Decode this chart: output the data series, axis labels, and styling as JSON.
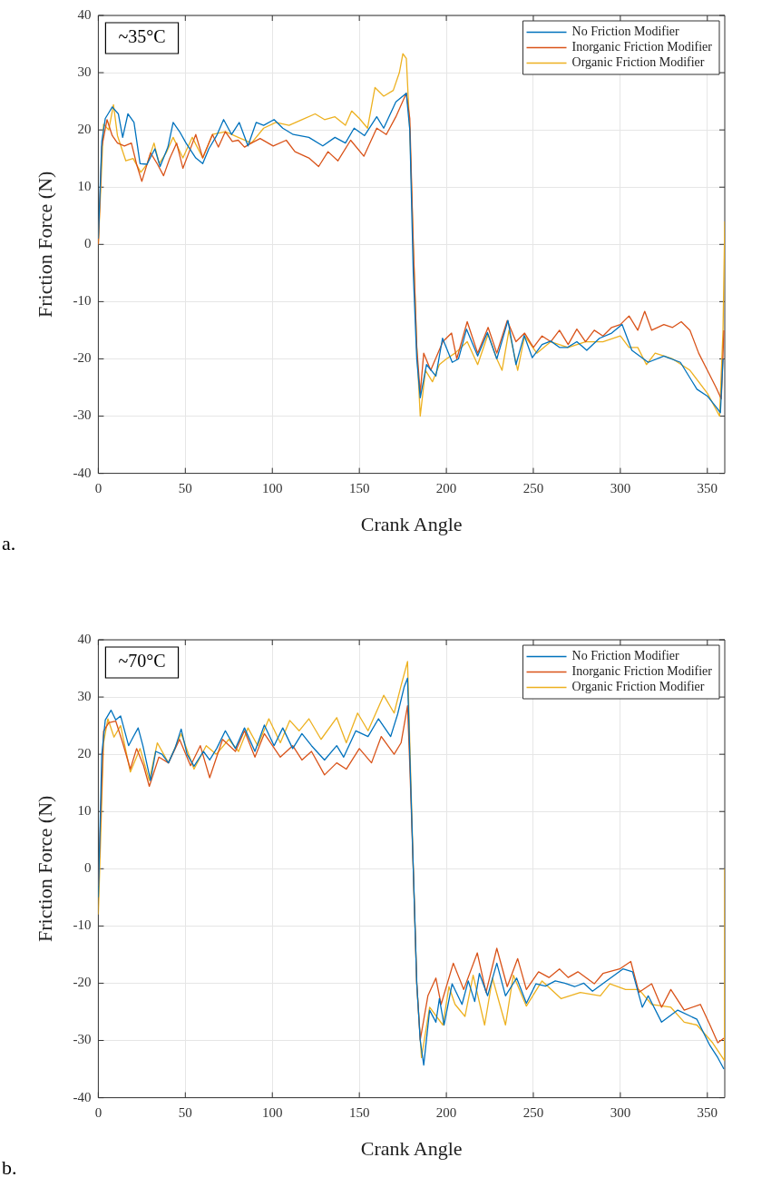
{
  "chart_data": [
    {
      "type": "line",
      "xlabel": "Crank Angle",
      "ylabel": "Friction Force (N)",
      "annotations": [
        "~35°C",
        "a."
      ],
      "xlim": [
        0,
        360
      ],
      "ylim": [
        -40,
        40
      ],
      "xticks": [
        0,
        50,
        100,
        150,
        200,
        250,
        300,
        350
      ],
      "yticks": [
        -40,
        -30,
        -20,
        -10,
        0,
        10,
        20,
        30,
        40
      ],
      "grid": true,
      "legend": "top right",
      "series": [
        {
          "name": "No Friction Modifier",
          "color": "#0072bd",
          "x": [
            0,
            2,
            4,
            6,
            8,
            11.5,
            14,
            17,
            20.5,
            24,
            28,
            32.5,
            35.5,
            40,
            43,
            46.7,
            50.4,
            56,
            60,
            63.5,
            68,
            72,
            76.6,
            81,
            86,
            90.7,
            95,
            101,
            106,
            112,
            121,
            129,
            136,
            142,
            147,
            153,
            160,
            164,
            171,
            177,
            179,
            181,
            183,
            185,
            188.6,
            194,
            197.8,
            203.4,
            207,
            211.6,
            218,
            223.6,
            229,
            235.4,
            240,
            244.7,
            249.4,
            255,
            260,
            265,
            269.6,
            275,
            280.7,
            288,
            295,
            301,
            306.6,
            316,
            325,
            334.5,
            344,
            350,
            355,
            357.5,
            359
          ],
          "values": [
            1,
            18,
            22,
            23,
            24,
            22.8,
            18.7,
            22.8,
            21.3,
            14.1,
            14,
            16.7,
            13.6,
            17,
            21.3,
            19.7,
            17.7,
            15.1,
            14.1,
            16.7,
            19,
            21.8,
            19.2,
            21.3,
            17.2,
            21.3,
            20.8,
            21.8,
            20.3,
            19.2,
            18.7,
            17.2,
            18.7,
            17.7,
            20.3,
            19,
            22.3,
            20.3,
            24.9,
            26.4,
            20,
            -5,
            -20,
            -26.8,
            -21,
            -23,
            -16.4,
            -20.6,
            -20,
            -14.8,
            -19.5,
            -15.4,
            -20,
            -13.3,
            -21,
            -15.9,
            -19.8,
            -17.5,
            -16.9,
            -18,
            -18,
            -17,
            -18.5,
            -16.4,
            -15.5,
            -14,
            -18.5,
            -20.6,
            -19.5,
            -20.6,
            -25.3,
            -26.5,
            -28.4,
            -29.4,
            -20
          ]
        },
        {
          "name": "Inorganic Friction Modifier",
          "color": "#d95319",
          "x": [
            0,
            2,
            5,
            8,
            11,
            15,
            19,
            22,
            25,
            30,
            34,
            37.5,
            41,
            45,
            48.6,
            52,
            56,
            60,
            65.6,
            69,
            73,
            77,
            80.4,
            84,
            88,
            93,
            100.5,
            108,
            113,
            121,
            126.6,
            132,
            137.7,
            145,
            152.6,
            160,
            165.5,
            171,
            177,
            179,
            181,
            183,
            185,
            187,
            191,
            198,
            203,
            206,
            212,
            218,
            224,
            229,
            235,
            240,
            245,
            250,
            255,
            260,
            265,
            270,
            275,
            280,
            285,
            290,
            295,
            300,
            305,
            310,
            314,
            318,
            325,
            330,
            335,
            340,
            345,
            350,
            355,
            358,
            359.5
          ],
          "values": [
            0,
            17,
            21.8,
            19,
            17.7,
            17.2,
            17.7,
            14,
            11,
            16,
            14,
            12,
            15,
            17.7,
            13.3,
            16,
            19.2,
            15.1,
            19.2,
            17,
            19.7,
            18,
            18.2,
            17,
            17.7,
            18.5,
            17.2,
            18.2,
            16.2,
            15.1,
            13.6,
            16.2,
            14.6,
            18.2,
            15.4,
            20.3,
            19.2,
            22.3,
            26.4,
            22,
            0,
            -18,
            -26,
            -19,
            -22,
            -17,
            -15.5,
            -20,
            -13.5,
            -19,
            -14.5,
            -19,
            -13.3,
            -17,
            -15.5,
            -18,
            -16,
            -17,
            -15,
            -17.5,
            -14.8,
            -17,
            -15,
            -16,
            -14.5,
            -14,
            -12.5,
            -15,
            -11.7,
            -15,
            -14,
            -14.5,
            -13.5,
            -15,
            -19,
            -22,
            -25,
            -27,
            -15
          ]
        },
        {
          "name": "Organic Friction Modifier",
          "color": "#edb120",
          "x": [
            0,
            3,
            6,
            8.7,
            11,
            15.8,
            20,
            24.4,
            28,
            32,
            35,
            39,
            43,
            48.6,
            54,
            60,
            65.6,
            73,
            80.4,
            88,
            95,
            102,
            109.6,
            117,
            124.6,
            130,
            136,
            142,
            145.6,
            150,
            154.7,
            159,
            164,
            169.5,
            173,
            175,
            177,
            179,
            181,
            183,
            185,
            188,
            192,
            196,
            200,
            205,
            212,
            218,
            224,
            229,
            232,
            236,
            241,
            245,
            252,
            260,
            270,
            280,
            290,
            300,
            305,
            310,
            315,
            320,
            330,
            340,
            350,
            357,
            359,
            360
          ],
          "values": [
            0,
            21,
            20,
            24.4,
            19,
            14.6,
            15,
            12.6,
            14,
            17.7,
            14.1,
            16,
            18.7,
            15.1,
            18.7,
            15.1,
            19.2,
            19.7,
            18.7,
            17.7,
            20.3,
            21.3,
            20.8,
            21.8,
            22.8,
            21.8,
            22.3,
            20.8,
            23.3,
            22,
            20.3,
            27.4,
            25.9,
            26.9,
            30,
            33.3,
            32.5,
            20,
            0,
            -18,
            -30,
            -22,
            -24,
            -21,
            -20,
            -19,
            -17,
            -21,
            -15.7,
            -20,
            -22,
            -15,
            -22,
            -16,
            -19,
            -17,
            -18,
            -17,
            -17,
            -16,
            -18,
            -18,
            -21,
            -19,
            -20,
            -22,
            -26,
            -30,
            -15,
            4
          ]
        }
      ]
    },
    {
      "type": "line",
      "xlabel": "Crank Angle",
      "ylabel": "Friction Force (N)",
      "annotations": [
        "~70°C",
        "b."
      ],
      "xlim": [
        0,
        360
      ],
      "ylim": [
        -40,
        40
      ],
      "xticks": [
        0,
        50,
        100,
        150,
        200,
        250,
        300,
        350
      ],
      "yticks": [
        -40,
        -30,
        -20,
        -10,
        0,
        10,
        20,
        30,
        40
      ],
      "grid": true,
      "legend": "top right",
      "series": [
        {
          "name": "No Friction Modifier",
          "color": "#0072bd",
          "x": [
            0,
            2,
            4,
            7.3,
            10,
            12.8,
            17.4,
            20,
            22.9,
            25.6,
            30,
            33,
            36.6,
            40.3,
            44,
            47.6,
            51,
            55,
            60.4,
            64,
            68,
            73,
            78.8,
            84,
            90,
            95.4,
            101,
            106,
            111.7,
            117,
            122.5,
            130,
            137,
            141,
            148,
            155,
            161,
            168,
            172,
            175.8,
            177.7,
            179,
            181,
            183,
            185,
            187,
            190.4,
            194,
            196,
            198.7,
            203.3,
            209,
            212.6,
            216.3,
            219,
            223.7,
            229,
            234,
            240.4,
            246,
            251.5,
            257,
            262.6,
            268,
            273.7,
            279,
            284,
            292,
            301.5,
            307,
            312.6,
            316,
            323.7,
            333,
            344,
            351.5,
            356,
            359.5
          ],
          "values": [
            -5,
            20,
            26,
            27.7,
            26,
            26.7,
            21.5,
            23,
            24.6,
            21.5,
            15.4,
            20.5,
            20,
            18.5,
            21,
            24.4,
            20,
            17.9,
            20.5,
            19,
            21,
            24.1,
            21,
            24.6,
            20.5,
            25.1,
            21.5,
            24.6,
            21,
            23.6,
            21.5,
            19,
            21.5,
            19.5,
            24.1,
            23.1,
            26.2,
            23.1,
            27,
            31.8,
            33.3,
            20,
            0,
            -20,
            -30,
            -34.3,
            -24.7,
            -26.8,
            -22.7,
            -27.3,
            -20.1,
            -23.7,
            -19.6,
            -23.2,
            -18.3,
            -22.2,
            -16.5,
            -22.2,
            -19.1,
            -23.5,
            -20.1,
            -20.5,
            -19.6,
            -20,
            -20.6,
            -20,
            -21.4,
            -19.6,
            -17.5,
            -18,
            -24.2,
            -22.2,
            -26.8,
            -24.7,
            -26.3,
            -30.9,
            -33,
            -35
          ]
        },
        {
          "name": "Inorganic Friction Modifier",
          "color": "#d95319",
          "x": [
            0,
            3,
            6,
            10,
            14,
            18.4,
            22,
            26,
            29.3,
            34.8,
            40.3,
            46.7,
            53,
            58.6,
            64,
            71.4,
            78.8,
            84,
            90,
            95.4,
            104.6,
            111.7,
            117,
            122.5,
            130,
            137,
            142.5,
            150,
            157,
            162.6,
            170,
            174,
            177.7,
            179,
            181,
            183,
            185,
            189.4,
            194,
            197,
            204,
            210,
            217.8,
            222.8,
            229,
            235,
            241,
            246,
            253,
            259,
            265,
            270,
            275.6,
            285,
            290,
            299.6,
            306,
            310.7,
            318,
            323.7,
            329,
            336.7,
            346,
            351.5,
            356,
            359.5
          ],
          "values": [
            -3,
            24,
            25.5,
            25.8,
            22,
            17.4,
            21,
            18,
            14.4,
            19.5,
            18.5,
            22.6,
            18,
            21.5,
            15.9,
            22.6,
            20.5,
            24.1,
            19.5,
            23.6,
            19.5,
            21.5,
            19,
            20.5,
            16.4,
            18.5,
            17.4,
            21,
            18.5,
            23.1,
            20,
            22,
            28.5,
            18,
            0,
            -20,
            -29.9,
            -22.2,
            -19.1,
            -23.7,
            -16.5,
            -21.1,
            -14.7,
            -21.6,
            -13.9,
            -20.6,
            -15.7,
            -21.1,
            -18,
            -19,
            -17.5,
            -19,
            -18,
            -20.1,
            -18.3,
            -17.5,
            -16.2,
            -21.6,
            -20.1,
            -24.2,
            -21.1,
            -24.7,
            -23.7,
            -27.3,
            -30.4,
            -29.6
          ]
        },
        {
          "name": "Organic Friction Modifier",
          "color": "#edb120",
          "x": [
            0,
            3,
            5.5,
            9,
            12.8,
            18.4,
            24,
            29.3,
            33.9,
            40.3,
            47.6,
            55,
            62,
            67.8,
            75,
            80.6,
            86,
            91.6,
            98,
            104.6,
            110,
            115.4,
            121,
            128,
            137,
            142.5,
            149,
            155,
            164,
            170,
            174,
            177.7,
            179,
            181,
            183,
            185.7,
            190.4,
            198,
            201.5,
            205,
            210.7,
            215.4,
            222,
            226.5,
            234,
            238.5,
            246,
            255,
            266,
            277,
            288.5,
            294,
            303,
            310.7,
            318,
            329,
            336.7,
            344,
            353,
            359.8,
            360
          ],
          "values": [
            -8,
            22,
            26.2,
            23,
            25,
            16.9,
            21,
            15.4,
            22,
            18.5,
            23.6,
            17.4,
            21.5,
            20,
            22.6,
            20.5,
            24.6,
            21.5,
            26.2,
            22,
            25.9,
            24.1,
            26.2,
            22.6,
            26.4,
            22,
            27.2,
            24.1,
            30.3,
            27.2,
            32,
            36.2,
            22,
            0,
            -20,
            -33,
            -24.2,
            -27.3,
            -20.6,
            -23.7,
            -25.8,
            -18.6,
            -27.3,
            -19.1,
            -27.3,
            -18.6,
            -24,
            -19.6,
            -22.7,
            -21.6,
            -22.2,
            -20.1,
            -21.1,
            -21.1,
            -23.7,
            -24.2,
            -26.8,
            -27.3,
            -30.4,
            -33.5,
            0
          ]
        }
      ]
    }
  ]
}
